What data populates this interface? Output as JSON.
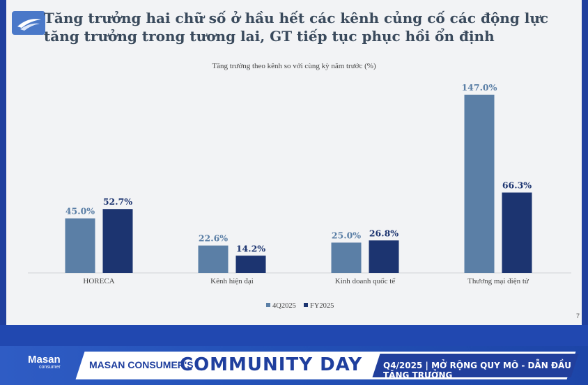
{
  "slide": {
    "title": "Tăng trưởng hai chữ số ở hầu hết các kênh củng cố các động lực tăng trưởng trong tương lai, GT tiếp tục phục hồi ổn định",
    "page_number": "7"
  },
  "chart_data": {
    "type": "bar",
    "title": "Tăng trưởng theo kênh so với cùng kỳ năm trước (%)",
    "categories": [
      "HORECA",
      "Kênh hiện đại",
      "Kinh doanh quốc tế",
      "Thương mại điện tử"
    ],
    "series": [
      {
        "name": "4Q2025",
        "values": [
          45.0,
          22.6,
          25.0,
          147.0
        ],
        "labels": [
          "45.0%",
          "22.6%",
          "25.0%",
          "147.0%"
        ],
        "color": "#5b7fa6"
      },
      {
        "name": "FY2025",
        "values": [
          52.7,
          14.2,
          26.8,
          66.3
        ],
        "labels": [
          "52.7%",
          "14.2%",
          "26.8%",
          "66.3%"
        ],
        "color": "#1c3470"
      }
    ],
    "ylim": [
      0,
      147.0
    ],
    "legend_position": "bottom"
  },
  "footer": {
    "logo_text": "Masan",
    "logo_sub": "consumer",
    "brand_prefix": "MASAN CONSUMER'S",
    "brand_main": "COMMUNITY DAY",
    "tagline": "Q4/2025 | MỞ RỘNG QUY MÔ - DẪN ĐẦU TĂNG TRƯỞNG"
  }
}
